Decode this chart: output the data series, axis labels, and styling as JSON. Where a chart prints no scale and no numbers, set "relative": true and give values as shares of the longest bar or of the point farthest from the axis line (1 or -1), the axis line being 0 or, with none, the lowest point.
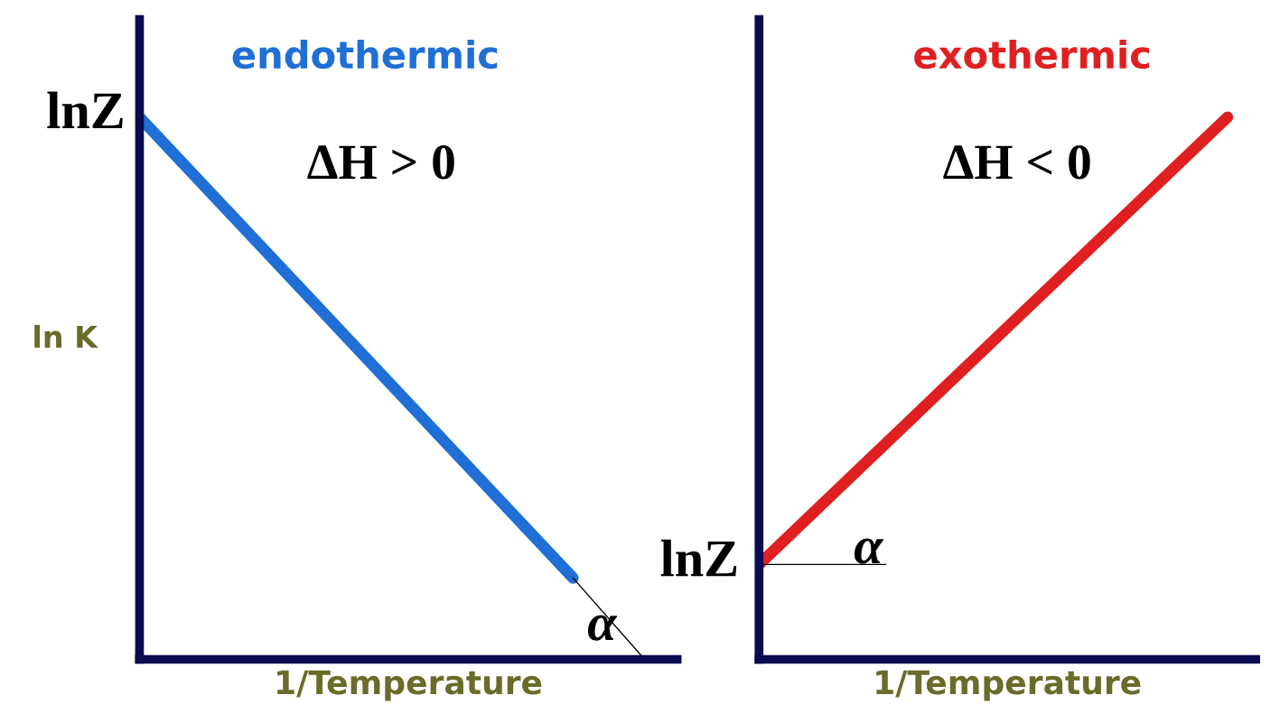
{
  "chart_data": [
    {
      "type": "line",
      "title": "endothermic",
      "ylabel": "ln K",
      "xlabel": "1/Temperature",
      "relative": true,
      "categories": [
        null,
        null
      ],
      "series": [
        {
          "color": "#1f6fd6",
          "values": [
            1,
            0.15
          ]
        }
      ],
      "annotations": [
        "lnZ",
        "ΔH > 0",
        "α"
      ]
    },
    {
      "type": "line",
      "title": "exothermic",
      "xlabel": "1/Temperature",
      "relative": true,
      "categories": [
        null,
        null
      ],
      "series": [
        {
          "color": "#e02020",
          "values": [
            0.175,
            1
          ]
        }
      ],
      "annotations": [
        "lnZ",
        "ΔH < 0",
        "α"
      ]
    }
  ]
}
